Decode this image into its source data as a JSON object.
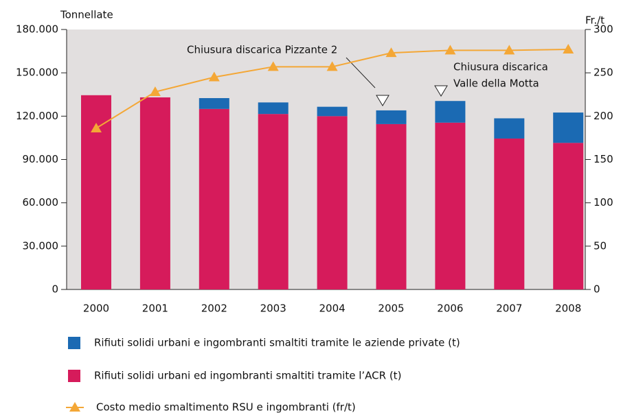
{
  "chart_data": {
    "type": "bar",
    "y_label": "Tonnellate",
    "y2_label": "Fr./t",
    "categories": [
      "2000",
      "2001",
      "2002",
      "2003",
      "2004",
      "2005",
      "2006",
      "2007",
      "2008"
    ],
    "stacked": true,
    "series": [
      {
        "name": "Rifiuti solidi urbani e ingombranti smaltiti tramite le aziende private (t)",
        "color": "#1b6ab3",
        "values": [
          0,
          0,
          7500,
          8000,
          6500,
          9500,
          15000,
          14000,
          21000
        ]
      },
      {
        "name": "Rifiuti solidi urbani ed ingombranti smaltiti tramite l’ACR (t)",
        "color": "#d61b5b",
        "values": [
          134500,
          133000,
          125000,
          121500,
          120000,
          114500,
          115500,
          104500,
          101500
        ]
      },
      {
        "name": "Costo medio smaltimento RSU e ingombranti (fr/t)",
        "color": "#f4a736",
        "type": "line",
        "axis": "y2",
        "values": [
          186,
          228,
          245,
          257,
          257,
          273,
          276,
          276,
          277
        ]
      }
    ],
    "ylim": [
      0,
      180000
    ],
    "yticks": [
      0,
      {
        "value": 30000,
        "label": "30.000"
      },
      {
        "value": 60000,
        "label": "60.000"
      },
      {
        "value": 90000,
        "label": "90.000"
      },
      {
        "value": 120000,
        "label": "120.000"
      },
      {
        "value": 150000,
        "label": "150.000"
      },
      {
        "value": 180000,
        "label": "180.000"
      }
    ],
    "y2lim": [
      0,
      300
    ],
    "y2ticks": [
      0,
      50,
      100,
      150,
      200,
      250,
      300
    ],
    "annotations": [
      "Chiusura discarica Pizzante 2",
      "Chiusura discarica",
      "Valle della Motta"
    ],
    "plot_background": "#e2dfdf"
  }
}
